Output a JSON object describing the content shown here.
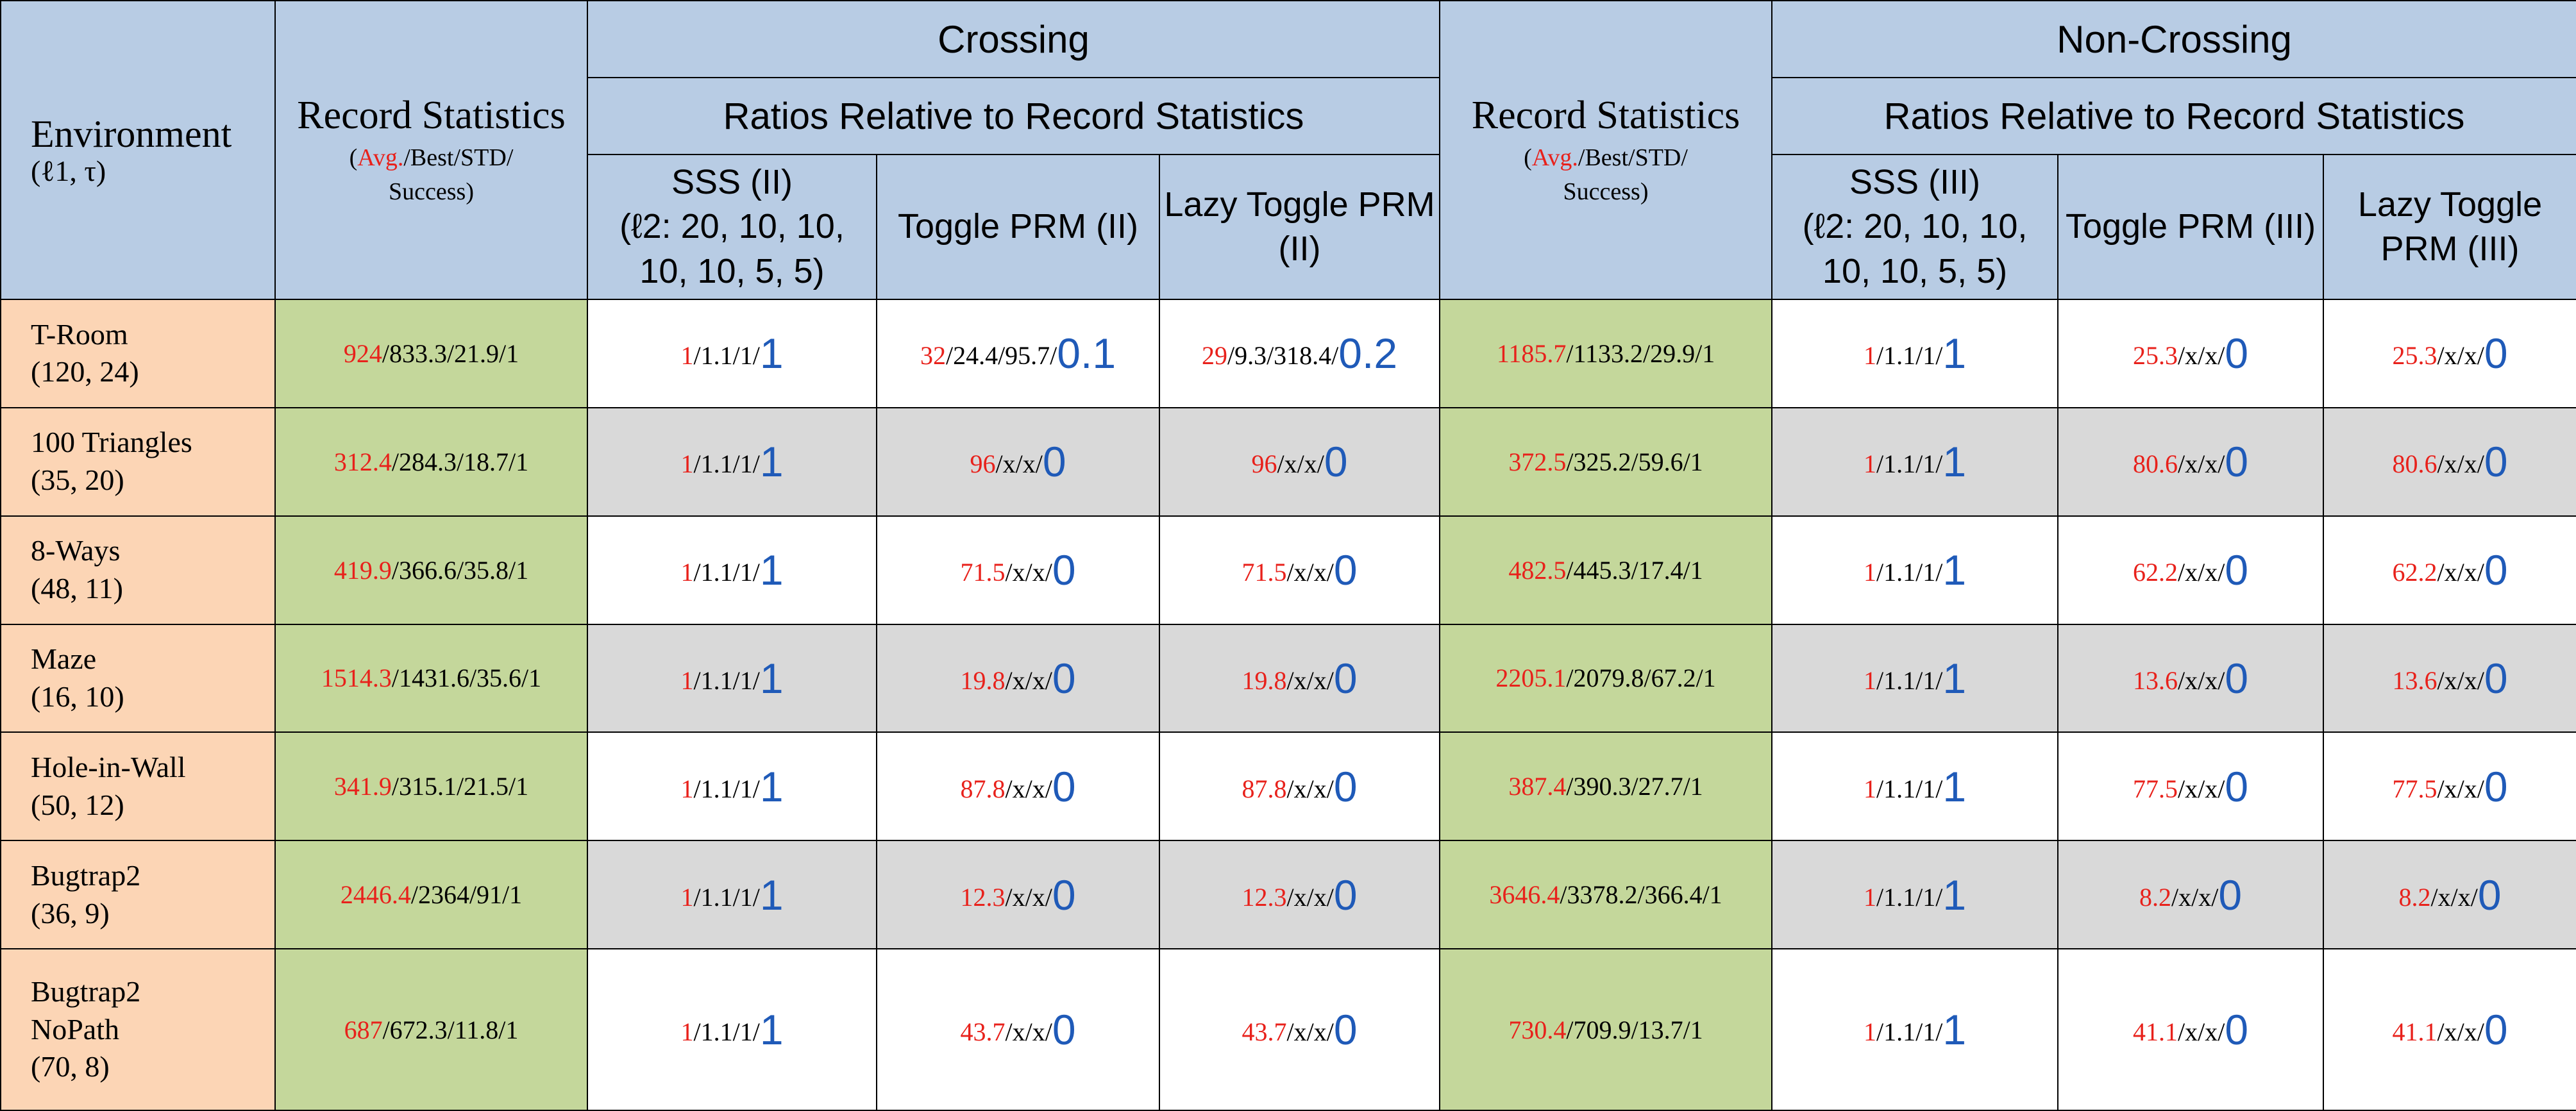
{
  "header": {
    "environment": {
      "title": "Environment",
      "subtitle": "(ℓ1, τ)"
    },
    "record_stats": {
      "title": "Record Statistics",
      "sub_avg": "Avg.",
      "sub_rest": "/Best/STD/",
      "sub_success": "Success"
    },
    "groups": {
      "crossing": "Crossing",
      "non_crossing": "Non-Crossing"
    },
    "ratios_label": "Ratios Relative to Record Statistics",
    "crossing_methods": {
      "sss_title": "SSS (II)",
      "sss_params": "(ℓ2: 20, 10, 10, 10, 10, 5, 5)",
      "toggle": "Toggle PRM (II)",
      "lazy": "Lazy Toggle PRM (II)"
    },
    "non_crossing_methods": {
      "sss_title": "SSS (III)",
      "sss_params": "(ℓ2: 20, 10, 10, 10, 10, 5, 5)",
      "toggle": "Toggle PRM (III)",
      "lazy": "Lazy Toggle PRM (III)"
    }
  },
  "rows": [
    {
      "env_name": "T-Room",
      "env_name2": "",
      "env_params": "(120, 24)",
      "crossing": {
        "record": {
          "avg": "924",
          "rest": "/833.3/21.9/1"
        },
        "sss": {
          "avg": "1",
          "rest": "/1.1/1/",
          "success": "1"
        },
        "toggle": {
          "avg": "32",
          "rest": "/24.4/95.7/",
          "success": "0.1"
        },
        "lazy": {
          "avg": "29",
          "rest": "/9.3/318.4/",
          "success": "0.2"
        }
      },
      "non_crossing": {
        "record": {
          "avg": "1185.7",
          "rest": "/1133.2/29.9/1"
        },
        "sss": {
          "avg": "1",
          "rest": "/1.1/1/",
          "success": "1"
        },
        "toggle": {
          "avg": "25.3",
          "rest": "/x/x/",
          "success": "0"
        },
        "lazy": {
          "avg": "25.3",
          "rest": "/x/x/",
          "success": "0"
        }
      }
    },
    {
      "env_name": "100 Triangles",
      "env_name2": "",
      "env_params": "(35, 20)",
      "crossing": {
        "record": {
          "avg": "312.4",
          "rest": "/284.3/18.7/1"
        },
        "sss": {
          "avg": "1",
          "rest": "/1.1/1/",
          "success": "1"
        },
        "toggle": {
          "avg": "96",
          "rest": "/x/x/",
          "success": "0"
        },
        "lazy": {
          "avg": "96",
          "rest": "/x/x/",
          "success": "0"
        }
      },
      "non_crossing": {
        "record": {
          "avg": "372.5",
          "rest": "/325.2/59.6/1"
        },
        "sss": {
          "avg": "1",
          "rest": "/1.1/1/",
          "success": "1"
        },
        "toggle": {
          "avg": "80.6",
          "rest": "/x/x/",
          "success": "0"
        },
        "lazy": {
          "avg": "80.6",
          "rest": "/x/x/",
          "success": "0"
        }
      }
    },
    {
      "env_name": "8-Ways",
      "env_name2": "",
      "env_params": "(48, 11)",
      "crossing": {
        "record": {
          "avg": "419.9",
          "rest": "/366.6/35.8/1"
        },
        "sss": {
          "avg": "1",
          "rest": "/1.1/1/",
          "success": "1"
        },
        "toggle": {
          "avg": "71.5",
          "rest": "/x/x/",
          "success": "0"
        },
        "lazy": {
          "avg": "71.5",
          "rest": "/x/x/",
          "success": "0"
        }
      },
      "non_crossing": {
        "record": {
          "avg": "482.5",
          "rest": "/445.3/17.4/1"
        },
        "sss": {
          "avg": "1",
          "rest": "/1.1/1/",
          "success": "1"
        },
        "toggle": {
          "avg": "62.2",
          "rest": "/x/x/",
          "success": "0"
        },
        "lazy": {
          "avg": "62.2",
          "rest": "/x/x/",
          "success": "0"
        }
      }
    },
    {
      "env_name": "Maze",
      "env_name2": "",
      "env_params": "(16, 10)",
      "crossing": {
        "record": {
          "avg": "1514.3",
          "rest": "/1431.6/35.6/1"
        },
        "sss": {
          "avg": "1",
          "rest": "/1.1/1/",
          "success": "1"
        },
        "toggle": {
          "avg": "19.8",
          "rest": "/x/x/",
          "success": "0"
        },
        "lazy": {
          "avg": "19.8",
          "rest": "/x/x/",
          "success": "0"
        }
      },
      "non_crossing": {
        "record": {
          "avg": "2205.1",
          "rest": "/2079.8/67.2/1"
        },
        "sss": {
          "avg": "1",
          "rest": "/1.1/1/",
          "success": "1"
        },
        "toggle": {
          "avg": "13.6",
          "rest": "/x/x/",
          "success": "0"
        },
        "lazy": {
          "avg": "13.6",
          "rest": "/x/x/",
          "success": "0"
        }
      }
    },
    {
      "env_name": "Hole-in-Wall",
      "env_name2": "",
      "env_params": "(50, 12)",
      "crossing": {
        "record": {
          "avg": "341.9",
          "rest": "/315.1/21.5/1"
        },
        "sss": {
          "avg": "1",
          "rest": "/1.1/1/",
          "success": "1"
        },
        "toggle": {
          "avg": "87.8",
          "rest": "/x/x/",
          "success": "0"
        },
        "lazy": {
          "avg": "87.8",
          "rest": "/x/x/",
          "success": "0"
        }
      },
      "non_crossing": {
        "record": {
          "avg": "387.4",
          "rest": "/390.3/27.7/1"
        },
        "sss": {
          "avg": "1",
          "rest": "/1.1/1/",
          "success": "1"
        },
        "toggle": {
          "avg": "77.5",
          "rest": "/x/x/",
          "success": "0"
        },
        "lazy": {
          "avg": "77.5",
          "rest": "/x/x/",
          "success": "0"
        }
      }
    },
    {
      "env_name": "Bugtrap2",
      "env_name2": "",
      "env_params": "(36, 9)",
      "crossing": {
        "record": {
          "avg": "2446.4",
          "rest": "/2364/91/1"
        },
        "sss": {
          "avg": "1",
          "rest": "/1.1/1/",
          "success": "1"
        },
        "toggle": {
          "avg": "12.3",
          "rest": "/x/x/",
          "success": "0"
        },
        "lazy": {
          "avg": "12.3",
          "rest": "/x/x/",
          "success": "0"
        }
      },
      "non_crossing": {
        "record": {
          "avg": "3646.4",
          "rest": "/3378.2/366.4/1"
        },
        "sss": {
          "avg": "1",
          "rest": "/1.1/1/",
          "success": "1"
        },
        "toggle": {
          "avg": "8.2",
          "rest": "/x/x/",
          "success": "0"
        },
        "lazy": {
          "avg": "8.2",
          "rest": "/x/x/",
          "success": "0"
        }
      }
    },
    {
      "env_name": "Bugtrap2",
      "env_name2": "NoPath",
      "env_params": "(70, 8)",
      "crossing": {
        "record": {
          "avg": "687",
          "rest": "/672.3/11.8/1"
        },
        "sss": {
          "avg": "1",
          "rest": "/1.1/1/",
          "success": "1"
        },
        "toggle": {
          "avg": "43.7",
          "rest": "/x/x/",
          "success": "0"
        },
        "lazy": {
          "avg": "43.7",
          "rest": "/x/x/",
          "success": "0"
        }
      },
      "non_crossing": {
        "record": {
          "avg": "730.4",
          "rest": "/709.9/13.7/1"
        },
        "sss": {
          "avg": "1",
          "rest": "/1.1/1/",
          "success": "1"
        },
        "toggle": {
          "avg": "41.1",
          "rest": "/x/x/",
          "success": "0"
        },
        "lazy": {
          "avg": "41.1",
          "rest": "/x/x/",
          "success": "0"
        }
      }
    }
  ]
}
